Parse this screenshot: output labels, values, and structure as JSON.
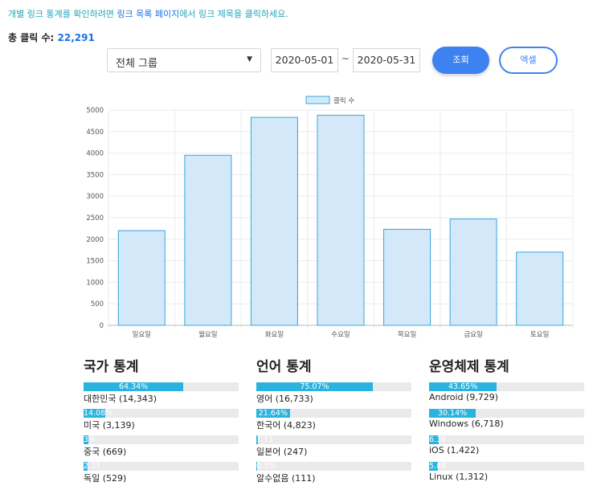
{
  "notice": {
    "before": "개별 링크 통계를 확인하려면 ",
    "link": "링크 목록 페이지",
    "after": "에서 링크 제목을 클릭하세요."
  },
  "total": {
    "label": "총 클릭 수: ",
    "value": "22,291"
  },
  "filters": {
    "group": "전체 그룹",
    "start_date": "2020-05-01",
    "separator": "~",
    "end_date": "2020-05-31",
    "search_label": "조회",
    "excel_label": "엑셀"
  },
  "chart_data": {
    "type": "bar",
    "categories": [
      "일요일",
      "월요일",
      "화요일",
      "수요일",
      "목요일",
      "금요일",
      "토요일"
    ],
    "series": [
      {
        "name": "클릭 수",
        "values": [
          2200,
          3950,
          4830,
          4880,
          2230,
          2470,
          1700
        ]
      }
    ],
    "ylim": [
      0,
      5000
    ],
    "yticks": [
      0,
      500,
      1000,
      1500,
      2000,
      2500,
      3000,
      3500,
      4000,
      4500,
      5000
    ],
    "legend_position": "top",
    "grid": true,
    "colors": {
      "fill": "#d3e9f9",
      "stroke": "#37a6dc"
    }
  },
  "sections": [
    {
      "title": "국가 통계",
      "items": [
        {
          "pct": 64.34,
          "pct_label": "64.34%",
          "label": "대한민국 (14,343)"
        },
        {
          "pct": 14.08,
          "pct_label": "14.08%",
          "label": "미국 (3,139)"
        },
        {
          "pct": 3,
          "pct_label": "3%",
          "label": "중국 (669)"
        },
        {
          "pct": 2.37,
          "pct_label": "2.37",
          "label": "독일 (529)"
        }
      ]
    },
    {
      "title": "언어 통계",
      "items": [
        {
          "pct": 75.07,
          "pct_label": "75.07%",
          "label": "영어 (16,733)"
        },
        {
          "pct": 21.64,
          "pct_label": "21.64%",
          "label": "한국어 (4,823)"
        },
        {
          "pct": 1.11,
          "pct_label": "1.11",
          "label": "일본어 (247)"
        },
        {
          "pct": 0.5,
          "pct_label": "0.5%",
          "label": "알수없음 (111)"
        }
      ]
    },
    {
      "title": "운영체제 통계",
      "items": [
        {
          "pct": 43.65,
          "pct_label": "43.65%",
          "label": "Android (9,729)"
        },
        {
          "pct": 30.14,
          "pct_label": "30.14%",
          "label": "Windows (6,718)"
        },
        {
          "pct": 6.38,
          "pct_label": "6.38",
          "label": "iOS (1,422)"
        },
        {
          "pct": 5.89,
          "pct_label": "5.89",
          "label": "Linux (1,312)"
        }
      ]
    }
  ]
}
